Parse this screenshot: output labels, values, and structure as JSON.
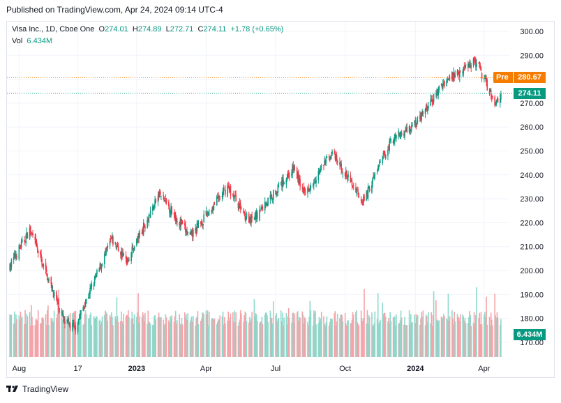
{
  "header": {
    "published": "Published on TradingView.com, Apr 24, 2024 09:14 UTC-4"
  },
  "legend": {
    "symbol": "Visa Inc., 1D, Cboe One",
    "o_label": "O",
    "o_value": "274.01",
    "h_label": "H",
    "h_value": "274.89",
    "l_label": "L",
    "l_value": "272.71",
    "c_label": "C",
    "c_value": "274.11",
    "change": "+1.78 (+0.65%)",
    "vol_label": "Vol",
    "vol_value": "6.434M"
  },
  "tags": {
    "pre_label": "Pre",
    "pre_value": "280.67",
    "last_value": "274.11",
    "vol_value": "6.434M"
  },
  "footer": {
    "brand": "TradingView"
  },
  "colors": {
    "up": "#089981",
    "down": "#f23645",
    "pre": "#f57c00",
    "grid": "#f0f3fa"
  },
  "chart_data": {
    "type": "candlestick",
    "title": "Visa Inc., 1D, Cboe One",
    "y_ticks": [
      300,
      290,
      280,
      270,
      260,
      250,
      240,
      230,
      220,
      210,
      200,
      190,
      180,
      170
    ],
    "ylim": [
      165,
      303
    ],
    "x_tick_labels": [
      "Aug",
      "17",
      "2023",
      "Apr",
      "Jul",
      "Oct",
      "2024",
      "Apr"
    ],
    "grid": true,
    "last_price": 274.11,
    "premarket_price": 280.67,
    "last_volume": "6.434M",
    "key_points": [
      {
        "date": "2022-07-20",
        "close": 202
      },
      {
        "date": "2022-08-15",
        "close": 217
      },
      {
        "date": "2022-09-30",
        "close": 178
      },
      {
        "date": "2022-10-13",
        "close": 176
      },
      {
        "date": "2022-11-30",
        "close": 213
      },
      {
        "date": "2022-12-20",
        "close": 204
      },
      {
        "date": "2023-02-01",
        "close": 232
      },
      {
        "date": "2023-03-13",
        "close": 214
      },
      {
        "date": "2023-05-01",
        "close": 235
      },
      {
        "date": "2023-05-31",
        "close": 220
      },
      {
        "date": "2023-07-27",
        "close": 243
      },
      {
        "date": "2023-08-09",
        "close": 232
      },
      {
        "date": "2023-09-14",
        "close": 249
      },
      {
        "date": "2023-10-26",
        "close": 229
      },
      {
        "date": "2023-11-30",
        "close": 254
      },
      {
        "date": "2024-01-05",
        "close": 262
      },
      {
        "date": "2024-02-09",
        "close": 279
      },
      {
        "date": "2024-03-20",
        "close": 288
      },
      {
        "date": "2024-04-16",
        "close": 270
      },
      {
        "date": "2024-04-23",
        "close": 274.11
      }
    ],
    "volume_range_millions": [
      5,
      15
    ]
  }
}
